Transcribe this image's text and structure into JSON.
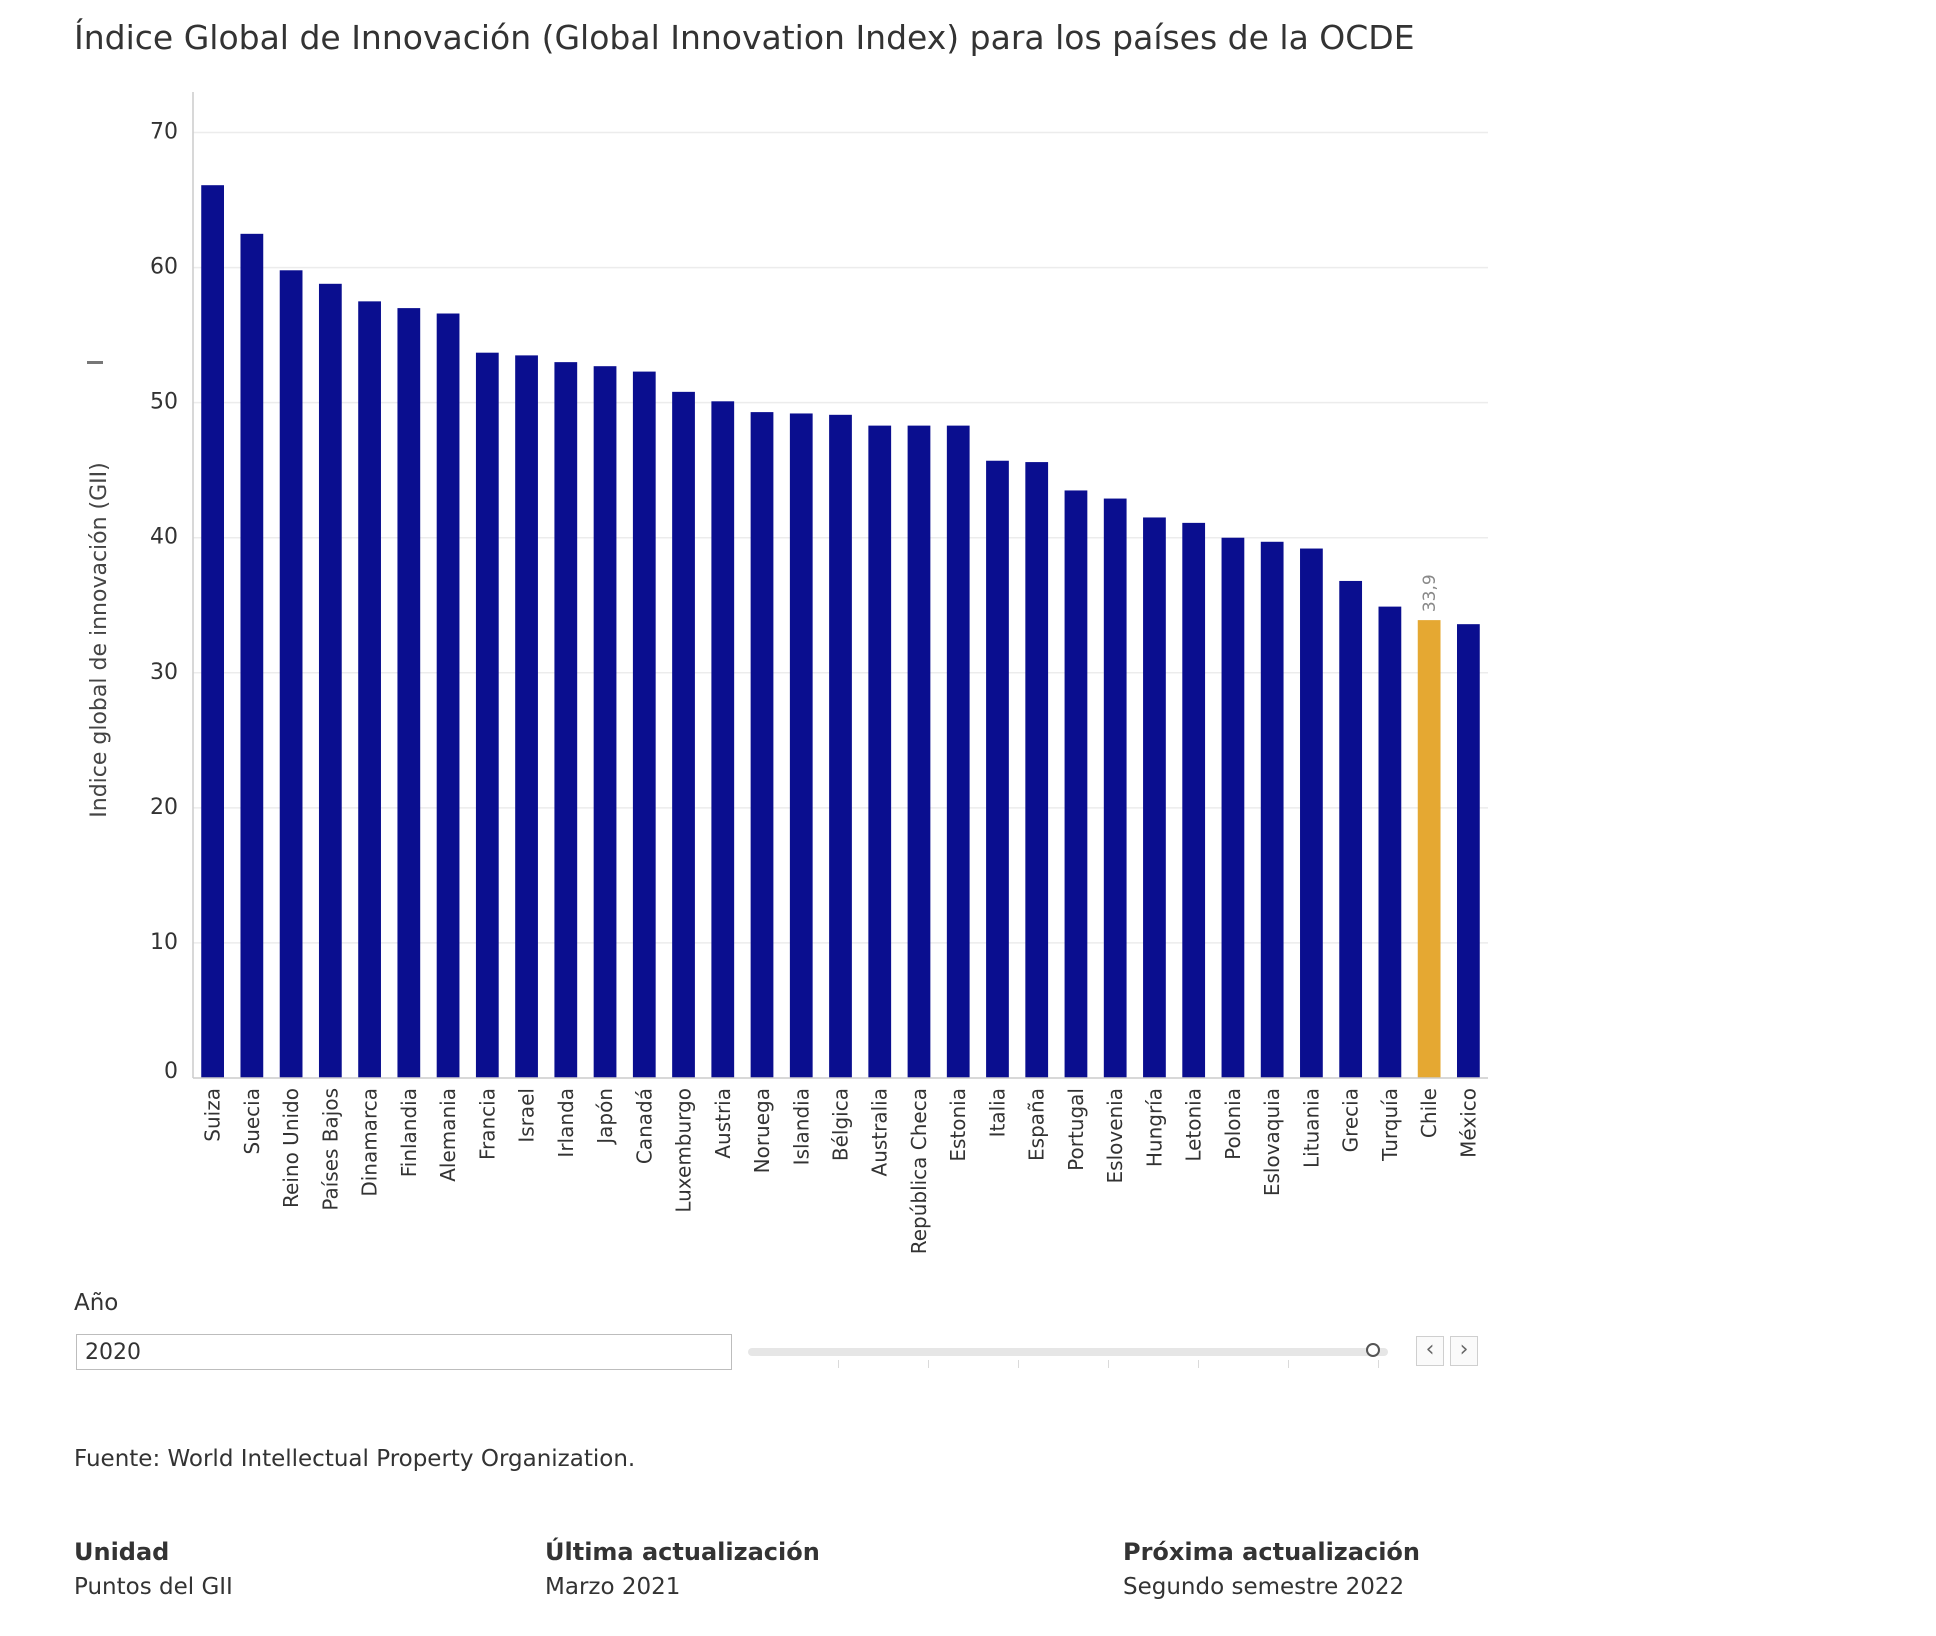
{
  "title": "Índice Global de Innovación (Global Innovation Index) para los países de la OCDE",
  "chart_data": {
    "type": "bar",
    "ylabel": "Indice global de innovación (GII)",
    "xlabel": "",
    "ylim": [
      0,
      73
    ],
    "yticks": [
      0,
      10,
      20,
      30,
      40,
      50,
      60,
      70
    ],
    "grid": true,
    "categories": [
      "Suiza",
      "Suecia",
      "Reino Unido",
      "Países Bajos",
      "Dinamarca",
      "Finlandia",
      "Alemania",
      "Francia",
      "Israel",
      "Irlanda",
      "Japón",
      "Canadá",
      "Luxemburgo",
      "Austria",
      "Noruega",
      "Islandia",
      "Bélgica",
      "Australia",
      "República Checa",
      "Estonia",
      "Italia",
      "España",
      "Portugal",
      "Eslovenia",
      "Hungría",
      "Letonia",
      "Polonia",
      "Eslovaquia",
      "Lituania",
      "Grecia",
      "Turquía",
      "Chile",
      "México"
    ],
    "values": [
      66.1,
      62.5,
      59.8,
      58.8,
      57.5,
      57.0,
      56.6,
      53.7,
      53.5,
      53.0,
      52.7,
      52.3,
      50.8,
      50.1,
      49.3,
      49.2,
      49.1,
      48.3,
      48.3,
      48.3,
      45.7,
      45.6,
      43.5,
      42.9,
      41.5,
      41.1,
      40.0,
      39.7,
      39.2,
      36.8,
      34.9,
      33.9,
      33.6
    ],
    "highlight_category": "Chile",
    "data_labels": [
      {
        "category": "Chile",
        "text": "33,9"
      }
    ],
    "colors": {
      "bar": "#0a0e8f",
      "highlight": "#e5a832",
      "grid": "#ececec",
      "axis": "#cccccc"
    }
  },
  "controls": {
    "year_label": "Año",
    "year_value": "2020",
    "slider_value_fraction": 1.0,
    "prev_icon": "chevron-left-icon",
    "next_icon": "chevron-right-icon",
    "prev_glyph": "‹",
    "next_glyph": "›"
  },
  "footer": {
    "source": "Fuente: World Intellectual Property Organization.",
    "unit_label": "Unidad",
    "unit_value": "Puntos del GII",
    "last_update_label": "Última actualización",
    "last_update_value": "Marzo 2021",
    "next_update_label": "Próxima actualización",
    "next_update_value": "Segundo semestre 2022"
  }
}
